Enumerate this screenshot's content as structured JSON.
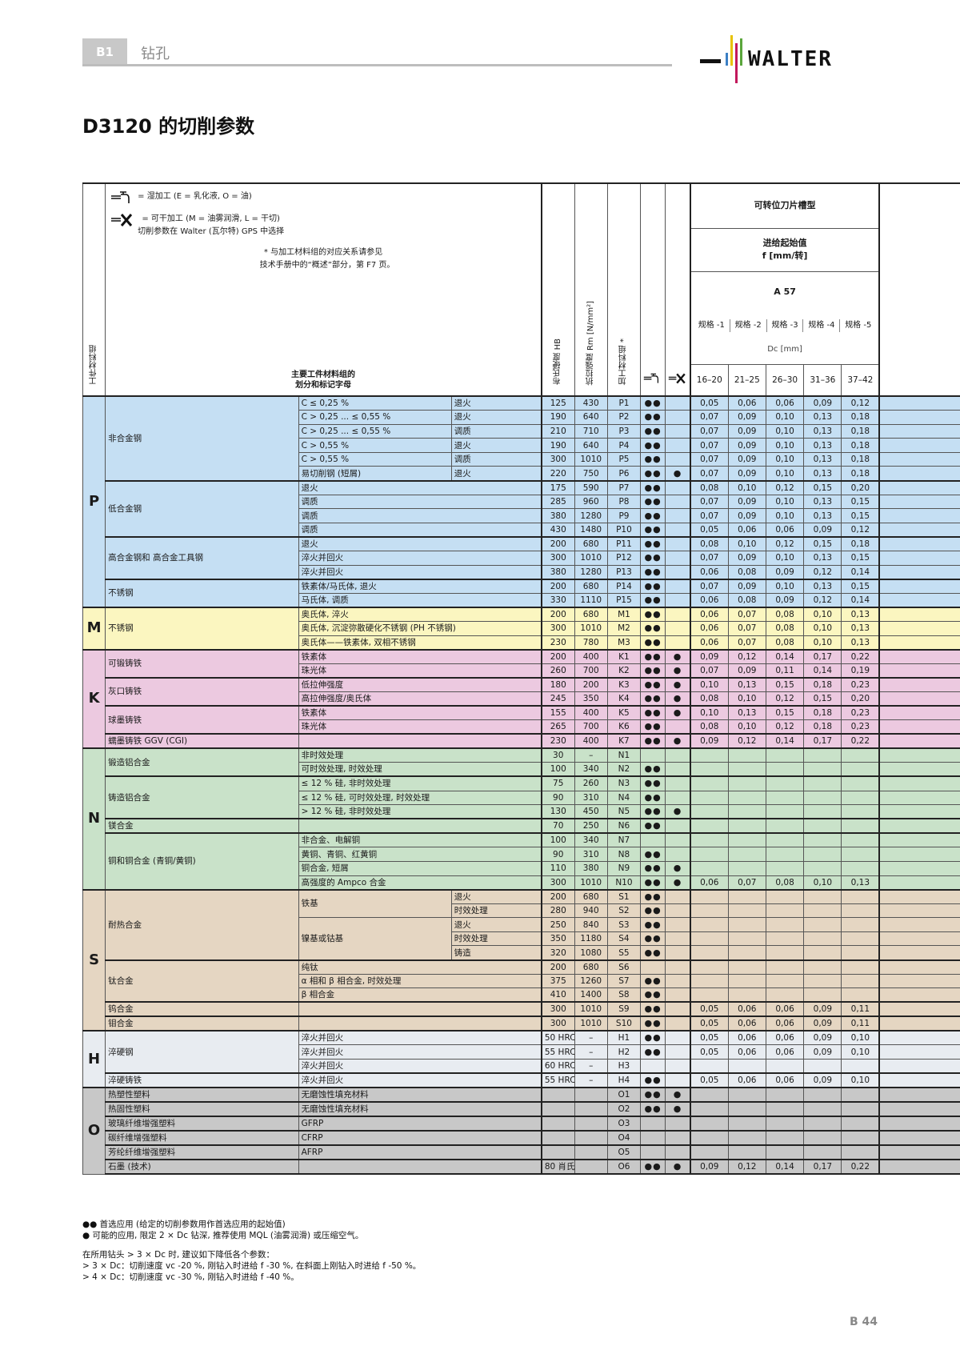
{
  "header": {
    "section_code": "B1",
    "section_name": "钻孔",
    "brand": "WALTER",
    "brand_colors": [
      "#3b7fc4",
      "#e8c200",
      "#c2185b",
      "#5aa63c"
    ]
  },
  "page_title": "D3120 的切削参数",
  "legend": {
    "wet": "= 湿加工 (E = 乳化液, O = 油)",
    "dry_line1": "= 可干加工 (M = 油雾润滑, L = 干切)",
    "dry_line2": "切削参数在 Walter (瓦尔特) GPS 中选择",
    "note_line1": "* 与加工材料组的对应关系请参见",
    "note_line2": "技术手册中的“概述”部分，第 F7 页。"
  },
  "columns": {
    "material_group": "工件材料组",
    "main_group_line1": "主要工件材料组的",
    "main_group_line2": "划分和标记字母",
    "hardness": "布氏硬度 HB",
    "tensile": "抗拉强度 Rm [N/mm²]",
    "machining_group": "加工材料组 *",
    "insert_geometry": "可转位刀片槽型",
    "feed_line1": "进给起始值",
    "feed_line2": "f [mm/转]",
    "grade": "A 57",
    "sizes": [
      "规格 -1",
      "规格 -2",
      "规格 -3",
      "规格 -4",
      "规格 -5"
    ],
    "dc_label": "Dc [mm]",
    "dc_ranges": [
      "16–20",
      "21–25",
      "26–30",
      "31–36",
      "37–42"
    ]
  },
  "rows": [
    {
      "g": "P",
      "group": "非合金钢",
      "sub": "C ≤ 0,25 %",
      "cond": "退火",
      "hb": "125",
      "rm": "430",
      "code": "P1",
      "wet": "●●",
      "dry": "",
      "f": [
        "0,05",
        "0,06",
        "0,06",
        "0,09",
        "0,12"
      ]
    },
    {
      "g": "P",
      "group": "",
      "sub": "C > 0,25 ... ≤ 0,55 %",
      "cond": "退火",
      "hb": "190",
      "rm": "640",
      "code": "P2",
      "wet": "●●",
      "dry": "",
      "f": [
        "0,07",
        "0,09",
        "0,10",
        "0,13",
        "0,18"
      ]
    },
    {
      "g": "P",
      "group": "",
      "sub": "C > 0,25 ... ≤ 0,55 %",
      "cond": "调质",
      "hb": "210",
      "rm": "710",
      "code": "P3",
      "wet": "●●",
      "dry": "",
      "f": [
        "0,07",
        "0,09",
        "0,10",
        "0,13",
        "0,18"
      ]
    },
    {
      "g": "P",
      "group": "",
      "sub": "C > 0,55 %",
      "cond": "退火",
      "hb": "190",
      "rm": "640",
      "code": "P4",
      "wet": "●●",
      "dry": "",
      "f": [
        "0,07",
        "0,09",
        "0,10",
        "0,13",
        "0,18"
      ]
    },
    {
      "g": "P",
      "group": "",
      "sub": "C > 0,55 %",
      "cond": "调质",
      "hb": "300",
      "rm": "1010",
      "code": "P5",
      "wet": "●●",
      "dry": "",
      "f": [
        "0,07",
        "0,09",
        "0,10",
        "0,13",
        "0,18"
      ]
    },
    {
      "g": "P",
      "group": "",
      "sub": "易切削钢 (短屑)",
      "cond": "退火",
      "hb": "220",
      "rm": "750",
      "code": "P6",
      "wet": "●●",
      "dry": "●",
      "f": [
        "0,07",
        "0,09",
        "0,10",
        "0,13",
        "0,18"
      ]
    },
    {
      "g": "P",
      "group": "低合金钢",
      "sub": "退火",
      "cond": "",
      "hb": "175",
      "rm": "590",
      "code": "P7",
      "wet": "●●",
      "dry": "",
      "f": [
        "0,08",
        "0,10",
        "0,12",
        "0,15",
        "0,20"
      ]
    },
    {
      "g": "P",
      "group": "",
      "sub": "调质",
      "cond": "",
      "hb": "285",
      "rm": "960",
      "code": "P8",
      "wet": "●●",
      "dry": "",
      "f": [
        "0,07",
        "0,09",
        "0,10",
        "0,13",
        "0,15"
      ]
    },
    {
      "g": "P",
      "group": "",
      "sub": "调质",
      "cond": "",
      "hb": "380",
      "rm": "1280",
      "code": "P9",
      "wet": "●●",
      "dry": "",
      "f": [
        "0,07",
        "0,09",
        "0,10",
        "0,13",
        "0,15"
      ]
    },
    {
      "g": "P",
      "group": "",
      "sub": "调质",
      "cond": "",
      "hb": "430",
      "rm": "1480",
      "code": "P10",
      "wet": "●●",
      "dry": "",
      "f": [
        "0,05",
        "0,06",
        "0,06",
        "0,09",
        "0,12"
      ]
    },
    {
      "g": "P",
      "group": "高合金钢和 高合金工具钢",
      "sub": "退火",
      "cond": "",
      "hb": "200",
      "rm": "680",
      "code": "P11",
      "wet": "●●",
      "dry": "",
      "f": [
        "0,08",
        "0,10",
        "0,12",
        "0,15",
        "0,18"
      ]
    },
    {
      "g": "P",
      "group": "",
      "sub": "淬火并回火",
      "cond": "",
      "hb": "300",
      "rm": "1010",
      "code": "P12",
      "wet": "●●",
      "dry": "",
      "f": [
        "0,07",
        "0,09",
        "0,10",
        "0,13",
        "0,15"
      ]
    },
    {
      "g": "P",
      "group": "",
      "sub": "淬火并回火",
      "cond": "",
      "hb": "380",
      "rm": "1280",
      "code": "P13",
      "wet": "●●",
      "dry": "",
      "f": [
        "0,06",
        "0,08",
        "0,09",
        "0,12",
        "0,14"
      ]
    },
    {
      "g": "P",
      "group": "不锈钢",
      "sub": "铁素体/马氏体, 退火",
      "cond": "",
      "hb": "200",
      "rm": "680",
      "code": "P14",
      "wet": "●●",
      "dry": "",
      "f": [
        "0,07",
        "0,09",
        "0,10",
        "0,13",
        "0,15"
      ]
    },
    {
      "g": "P",
      "group": "",
      "sub": "马氏体, 调质",
      "cond": "",
      "hb": "330",
      "rm": "1110",
      "code": "P15",
      "wet": "●●",
      "dry": "",
      "f": [
        "0,06",
        "0,08",
        "0,09",
        "0,12",
        "0,14"
      ]
    },
    {
      "g": "M",
      "group": "不锈钢",
      "sub": "奥氏体, 淬火",
      "cond": "",
      "hb": "200",
      "rm": "680",
      "code": "M1",
      "wet": "●●",
      "dry": "",
      "f": [
        "0,06",
        "0,07",
        "0,08",
        "0,10",
        "0,13"
      ]
    },
    {
      "g": "M",
      "group": "",
      "sub": "奥氏体, 沉淀弥散硬化不锈钢 (PH 不锈钢)",
      "cond": "",
      "hb": "300",
      "rm": "1010",
      "code": "M2",
      "wet": "●●",
      "dry": "",
      "f": [
        "0,06",
        "0,07",
        "0,08",
        "0,10",
        "0,13"
      ]
    },
    {
      "g": "M",
      "group": "",
      "sub": "奥氏体——铁素体, 双相不锈钢",
      "cond": "",
      "hb": "230",
      "rm": "780",
      "code": "M3",
      "wet": "●●",
      "dry": "",
      "f": [
        "0,06",
        "0,07",
        "0,08",
        "0,10",
        "0,13"
      ]
    },
    {
      "g": "K",
      "group": "可锻铸铁",
      "sub": "铁素体",
      "cond": "",
      "hb": "200",
      "rm": "400",
      "code": "K1",
      "wet": "●●",
      "dry": "●",
      "f": [
        "0,09",
        "0,12",
        "0,14",
        "0,17",
        "0,22"
      ]
    },
    {
      "g": "K",
      "group": "",
      "sub": "珠光体",
      "cond": "",
      "hb": "260",
      "rm": "700",
      "code": "K2",
      "wet": "●●",
      "dry": "●",
      "f": [
        "0,07",
        "0,09",
        "0,11",
        "0,14",
        "0,19"
      ]
    },
    {
      "g": "K",
      "group": "灰口铸铁",
      "sub": "低拉伸强度",
      "cond": "",
      "hb": "180",
      "rm": "200",
      "code": "K3",
      "wet": "●●",
      "dry": "●",
      "f": [
        "0,10",
        "0,13",
        "0,15",
        "0,18",
        "0,23"
      ]
    },
    {
      "g": "K",
      "group": "",
      "sub": "高拉伸强度/奥氏体",
      "cond": "",
      "hb": "245",
      "rm": "350",
      "code": "K4",
      "wet": "●●",
      "dry": "●",
      "f": [
        "0,08",
        "0,10",
        "0,12",
        "0,15",
        "0,20"
      ]
    },
    {
      "g": "K",
      "group": "球墨铸铁",
      "sub": "铁素体",
      "cond": "",
      "hb": "155",
      "rm": "400",
      "code": "K5",
      "wet": "●●",
      "dry": "●",
      "f": [
        "0,10",
        "0,13",
        "0,15",
        "0,18",
        "0,23"
      ]
    },
    {
      "g": "K",
      "group": "",
      "sub": "珠光体",
      "cond": "",
      "hb": "265",
      "rm": "700",
      "code": "K6",
      "wet": "●●",
      "dry": "",
      "f": [
        "0,08",
        "0,10",
        "0,12",
        "0,18",
        "0,23"
      ]
    },
    {
      "g": "K",
      "group": "蠕墨铸铁 GGV (CGI)",
      "sub": "",
      "cond": "",
      "hb": "230",
      "rm": "400",
      "code": "K7",
      "wet": "●●",
      "dry": "●",
      "f": [
        "0,09",
        "0,12",
        "0,14",
        "0,17",
        "0,22"
      ]
    },
    {
      "g": "N",
      "group": "锻造铝合金",
      "sub": "非时效处理",
      "cond": "",
      "hb": "30",
      "rm": "–",
      "code": "N1",
      "wet": "",
      "dry": "",
      "f": [
        "",
        "",
        "",
        "",
        ""
      ]
    },
    {
      "g": "N",
      "group": "",
      "sub": "可时效处理, 时效处理",
      "cond": "",
      "hb": "100",
      "rm": "340",
      "code": "N2",
      "wet": "●●",
      "dry": "",
      "f": [
        "",
        "",
        "",
        "",
        ""
      ]
    },
    {
      "g": "N",
      "group": "铸造铝合金",
      "sub": "≤ 12 % 硅, 非时效处理",
      "cond": "",
      "hb": "75",
      "rm": "260",
      "code": "N3",
      "wet": "●●",
      "dry": "",
      "f": [
        "",
        "",
        "",
        "",
        ""
      ]
    },
    {
      "g": "N",
      "group": "",
      "sub": "≤ 12 % 硅, 可时效处理, 时效处理",
      "cond": "",
      "hb": "90",
      "rm": "310",
      "code": "N4",
      "wet": "●●",
      "dry": "",
      "f": [
        "",
        "",
        "",
        "",
        ""
      ]
    },
    {
      "g": "N",
      "group": "",
      "sub": "> 12 % 硅, 非时效处理",
      "cond": "",
      "hb": "130",
      "rm": "450",
      "code": "N5",
      "wet": "●●",
      "dry": "●",
      "f": [
        "",
        "",
        "",
        "",
        ""
      ]
    },
    {
      "g": "N",
      "group": "镁合金",
      "sub": "",
      "cond": "",
      "hb": "70",
      "rm": "250",
      "code": "N6",
      "wet": "●●",
      "dry": "",
      "f": [
        "",
        "",
        "",
        "",
        ""
      ]
    },
    {
      "g": "N",
      "group": "铜和铜合金 (青铜/黄铜)",
      "sub": "非合金、电解铜",
      "cond": "",
      "hb": "100",
      "rm": "340",
      "code": "N7",
      "wet": "",
      "dry": "",
      "f": [
        "",
        "",
        "",
        "",
        ""
      ]
    },
    {
      "g": "N",
      "group": "",
      "sub": "黄铜、青铜、红黄铜",
      "cond": "",
      "hb": "90",
      "rm": "310",
      "code": "N8",
      "wet": "●●",
      "dry": "",
      "f": [
        "",
        "",
        "",
        "",
        ""
      ]
    },
    {
      "g": "N",
      "group": "",
      "sub": "铜合金, 短屑",
      "cond": "",
      "hb": "110",
      "rm": "380",
      "code": "N9",
      "wet": "●●",
      "dry": "●",
      "f": [
        "",
        "",
        "",
        "",
        ""
      ]
    },
    {
      "g": "N",
      "group": "",
      "sub": "高强度的 Ampco 合金",
      "cond": "",
      "hb": "300",
      "rm": "1010",
      "code": "N10",
      "wet": "●●",
      "dry": "●",
      "f": [
        "0,06",
        "0,07",
        "0,08",
        "0,10",
        "0,13"
      ]
    },
    {
      "g": "S",
      "group": "耐热合金",
      "sub": "铁基",
      "cond": "退火",
      "hb": "200",
      "rm": "680",
      "code": "S1",
      "wet": "●●",
      "dry": "",
      "f": [
        "",
        "",
        "",
        "",
        ""
      ]
    },
    {
      "g": "S",
      "group": "",
      "sub": "",
      "cond": "时效处理",
      "hb": "280",
      "rm": "940",
      "code": "S2",
      "wet": "●●",
      "dry": "",
      "f": [
        "",
        "",
        "",
        "",
        ""
      ]
    },
    {
      "g": "S",
      "group": "",
      "sub": "镍基或钴基",
      "cond": "退火",
      "hb": "250",
      "rm": "840",
      "code": "S3",
      "wet": "●●",
      "dry": "",
      "f": [
        "",
        "",
        "",
        "",
        ""
      ]
    },
    {
      "g": "S",
      "group": "",
      "sub": "",
      "cond": "时效处理",
      "hb": "350",
      "rm": "1180",
      "code": "S4",
      "wet": "●●",
      "dry": "",
      "f": [
        "",
        "",
        "",
        "",
        ""
      ]
    },
    {
      "g": "S",
      "group": "",
      "sub": "",
      "cond": "铸造",
      "hb": "320",
      "rm": "1080",
      "code": "S5",
      "wet": "●●",
      "dry": "",
      "f": [
        "",
        "",
        "",
        "",
        ""
      ]
    },
    {
      "g": "S",
      "group": "钛合金",
      "sub": "纯钛",
      "cond": "",
      "hb": "200",
      "rm": "680",
      "code": "S6",
      "wet": "",
      "dry": "",
      "f": [
        "",
        "",
        "",
        "",
        ""
      ]
    },
    {
      "g": "S",
      "group": "",
      "sub": "α 相和 β 相合金, 时效处理",
      "cond": "",
      "hb": "375",
      "rm": "1260",
      "code": "S7",
      "wet": "●●",
      "dry": "",
      "f": [
        "",
        "",
        "",
        "",
        ""
      ]
    },
    {
      "g": "S",
      "group": "",
      "sub": "β 相合金",
      "cond": "",
      "hb": "410",
      "rm": "1400",
      "code": "S8",
      "wet": "●●",
      "dry": "",
      "f": [
        "",
        "",
        "",
        "",
        ""
      ]
    },
    {
      "g": "S",
      "group": "钨合金",
      "sub": "",
      "cond": "",
      "hb": "300",
      "rm": "1010",
      "code": "S9",
      "wet": "●●",
      "dry": "",
      "f": [
        "0,05",
        "0,06",
        "0,06",
        "0,09",
        "0,11"
      ]
    },
    {
      "g": "S",
      "group": "钼合金",
      "sub": "",
      "cond": "",
      "hb": "300",
      "rm": "1010",
      "code": "S10",
      "wet": "●●",
      "dry": "",
      "f": [
        "0,05",
        "0,06",
        "0,06",
        "0,09",
        "0,11"
      ]
    },
    {
      "g": "H",
      "group": "淬硬钢",
      "sub": "淬火并回火",
      "cond": "",
      "hb": "50 HRC",
      "rm": "–",
      "code": "H1",
      "wet": "●●",
      "dry": "",
      "f": [
        "0,05",
        "0,06",
        "0,06",
        "0,09",
        "0,10"
      ]
    },
    {
      "g": "H",
      "group": "",
      "sub": "淬火并回火",
      "cond": "",
      "hb": "55 HRC",
      "rm": "–",
      "code": "H2",
      "wet": "●●",
      "dry": "",
      "f": [
        "0,05",
        "0,06",
        "0,06",
        "0,09",
        "0,10"
      ]
    },
    {
      "g": "H",
      "group": "",
      "sub": "淬火并回火",
      "cond": "",
      "hb": "60 HRC",
      "rm": "–",
      "code": "H3",
      "wet": "",
      "dry": "",
      "f": [
        "",
        "",
        "",
        "",
        ""
      ]
    },
    {
      "g": "H",
      "group": "淬硬铸铁",
      "sub": "淬火并回火",
      "cond": "",
      "hb": "55 HRC",
      "rm": "–",
      "code": "H4",
      "wet": "●●",
      "dry": "",
      "f": [
        "0,05",
        "0,06",
        "0,06",
        "0,09",
        "0,10"
      ]
    },
    {
      "g": "O",
      "group": "热塑性塑料",
      "sub": "无磨蚀性填充材料",
      "cond": "",
      "hb": "",
      "rm": "",
      "code": "O1",
      "wet": "●●",
      "dry": "●",
      "f": [
        "",
        "",
        "",
        "",
        ""
      ]
    },
    {
      "g": "O",
      "group": "热固性塑料",
      "sub": "无磨蚀性填充材料",
      "cond": "",
      "hb": "",
      "rm": "",
      "code": "O2",
      "wet": "●●",
      "dry": "●",
      "f": [
        "",
        "",
        "",
        "",
        ""
      ]
    },
    {
      "g": "O",
      "group": "玻璃纤维增强塑料",
      "sub": "GFRP",
      "cond": "",
      "hb": "",
      "rm": "",
      "code": "O3",
      "wet": "",
      "dry": "",
      "f": [
        "",
        "",
        "",
        "",
        ""
      ]
    },
    {
      "g": "O",
      "group": "碳纤维增强塑料",
      "sub": "CFRP",
      "cond": "",
      "hb": "",
      "rm": "",
      "code": "O4",
      "wet": "",
      "dry": "",
      "f": [
        "",
        "",
        "",
        "",
        ""
      ]
    },
    {
      "g": "O",
      "group": "芳纶纤维增强塑料",
      "sub": "AFRP",
      "cond": "",
      "hb": "",
      "rm": "",
      "code": "O5",
      "wet": "",
      "dry": "",
      "f": [
        "",
        "",
        "",
        "",
        ""
      ]
    },
    {
      "g": "O",
      "group": "石墨 (技术)",
      "sub": "",
      "cond": "",
      "hb": "80 肖氏",
      "rm": "",
      "code": "O6",
      "wet": "●●",
      "dry": "●",
      "f": [
        "0,09",
        "0,12",
        "0,14",
        "0,17",
        "0,22"
      ]
    }
  ],
  "footnotes": {
    "double_dot": "●●  首选应用 (给定的切削参数用作首选应用的起始值)",
    "single_dot": "●    可能的应用, 限定 2 × Dc 钻深, 推荐使用 MQL (油雾润滑) 或压缩空气。",
    "intro": "在所用钻头 > 3 × Dc 时, 建议如下降低各个参数：",
    "rule_3x": "> 3 × Dc：切削速度 vc -20 %, 刚钻入时进给 f -30 %, 在斜面上刚钻入时进给 f -50 %。",
    "rule_4x": "> 4 × Dc：切削速度 vc -30 %, 刚钻入时进给 f -40 %。"
  },
  "page_number": "B 44",
  "colors": {
    "P": "#c5dff3",
    "M": "#fbf6c0",
    "K": "#ecc9e0",
    "N": "#c9e2c9",
    "S": "#e5d6c2",
    "H": "#e8ecf1",
    "O": "#c8c8c8"
  }
}
